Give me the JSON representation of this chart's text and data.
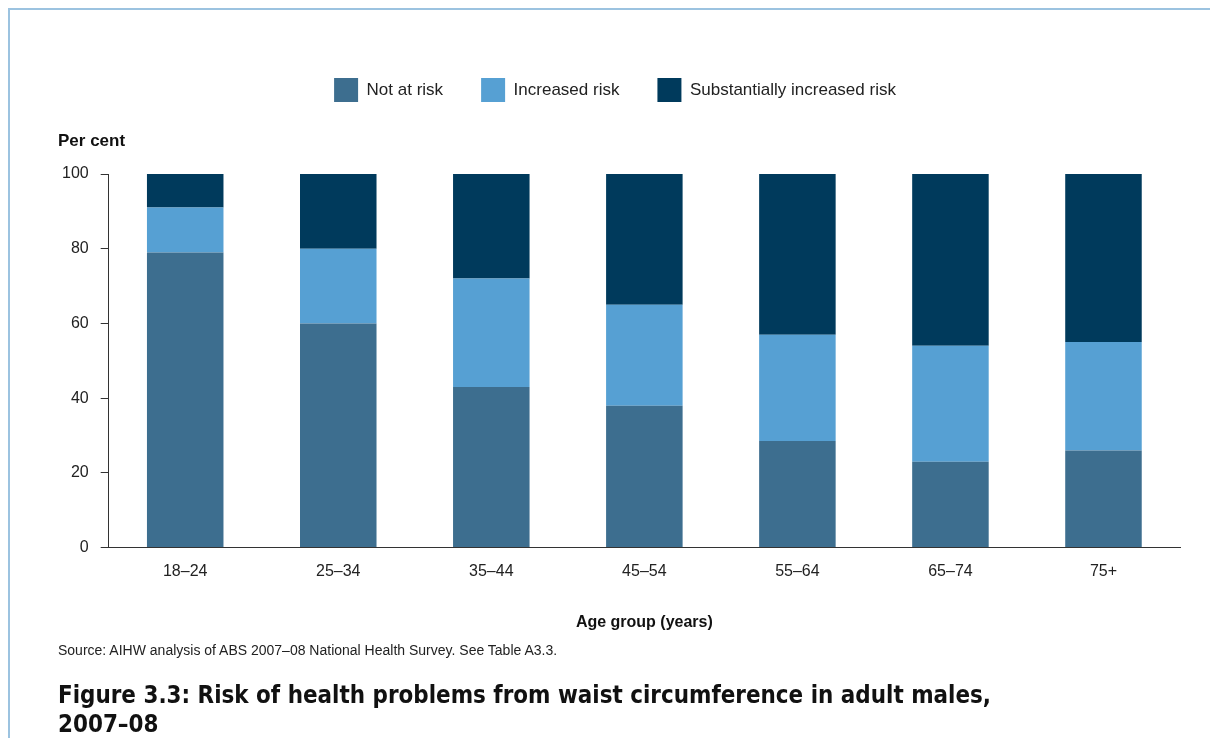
{
  "chart_data": {
    "type": "bar",
    "title": "Figure 3.3: Risk of health problems from waist circumference in adult males, 2007–08",
    "xlabel": "Age group (years)",
    "ylabel": "Per cent",
    "categories": [
      "18–24",
      "25–34",
      "35–44",
      "45–54",
      "55–64",
      "65–74",
      "75+"
    ],
    "series": [
      {
        "name": "Not at risk",
        "color": "#3d6e8f",
        "values": [
          79,
          60,
          43,
          38,
          28.5,
          23,
          26
        ]
      },
      {
        "name": "Increased risk",
        "color": "#56a0d3",
        "values": [
          12,
          20,
          29,
          27,
          28.5,
          31,
          29
        ]
      },
      {
        "name": "Substantially increased risk",
        "color": "#003a5c",
        "values": [
          9,
          20,
          28,
          35,
          43,
          46,
          45
        ]
      }
    ],
    "stacked": true,
    "ylim": [
      0,
      100
    ],
    "yticks": [
      0,
      20,
      40,
      60,
      80,
      100
    ],
    "grid": false,
    "legend": "top",
    "annotations": [
      "Source: AIHW analysis of ABS 2007–08 National Health Survey. See Table A3.3."
    ]
  }
}
